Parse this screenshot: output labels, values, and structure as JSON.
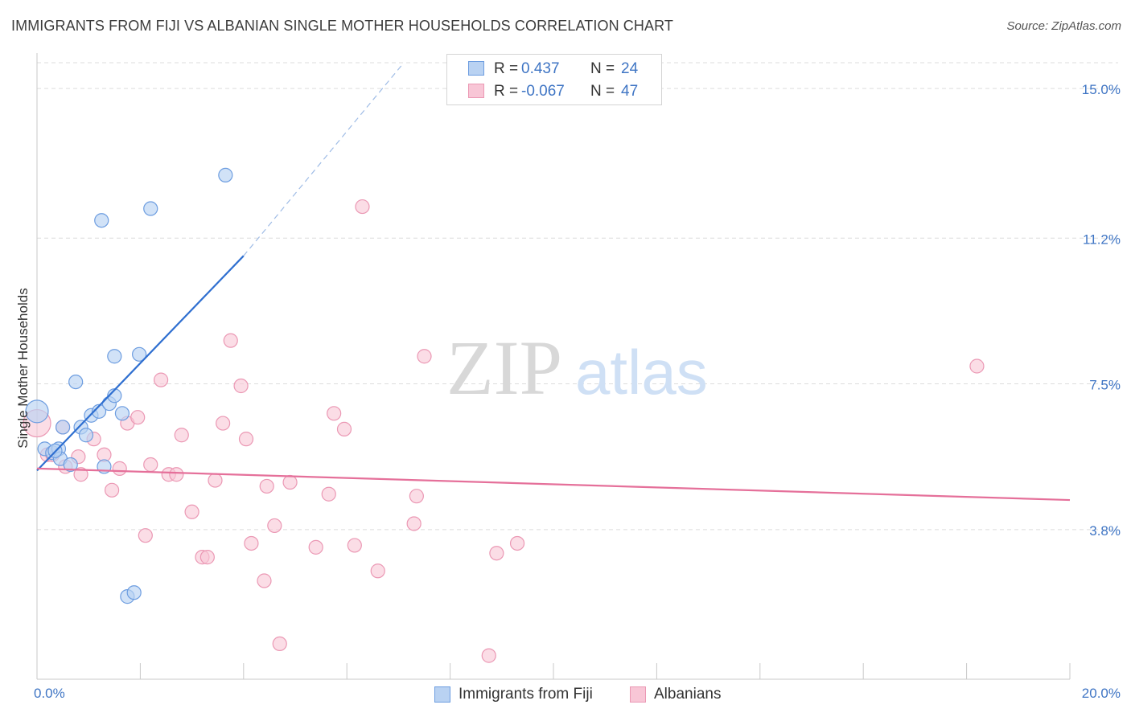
{
  "title": "IMMIGRANTS FROM FIJI VS ALBANIAN SINGLE MOTHER HOUSEHOLDS CORRELATION CHART",
  "source": "Source: ZipAtlas.com",
  "watermark": {
    "zip": "ZIP",
    "atlas": "atlas"
  },
  "colors": {
    "fiji_fill": "#b9d2f2",
    "fiji_stroke": "#6d9de0",
    "fiji_line": "#2f6fd0",
    "alb_fill": "#f8c6d6",
    "alb_stroke": "#eb98b4",
    "alb_line": "#e5709a",
    "accent": "#3f75c4",
    "grid": "#dcdcdc"
  },
  "legend": {
    "rows": [
      {
        "r_label": "R =",
        "r_value": " 0.437",
        "n_label": "N =",
        "n_value": "24"
      },
      {
        "r_label": "R =",
        "r_value": "-0.067",
        "n_label": "N =",
        "n_value": "47"
      }
    ]
  },
  "bottom_legend": {
    "fiji": "Immigrants from Fiji",
    "alb": "Albanians"
  },
  "chart_data": {
    "type": "scatter",
    "title": "IMMIGRANTS FROM FIJI VS ALBANIAN SINGLE MOTHER HOUSEHOLDS CORRELATION CHART",
    "xlabel": "",
    "ylabel": "Single Mother Households",
    "xlim": [
      0,
      20
    ],
    "ylim": [
      0,
      15.9
    ],
    "x_ticks": [
      {
        "value": 0,
        "label": "0.0%"
      },
      {
        "value": 20,
        "label": "20.0%"
      }
    ],
    "x_minor_ticks": [
      2,
      4,
      6,
      8,
      10,
      12,
      14,
      16,
      18,
      20
    ],
    "y_ticks": [
      {
        "value": 3.8,
        "label": "3.8%"
      },
      {
        "value": 7.5,
        "label": "7.5%"
      },
      {
        "value": 11.2,
        "label": "11.2%"
      },
      {
        "value": 15.0,
        "label": "15.0%"
      }
    ],
    "grid": true,
    "legend_position": "top-center",
    "series": [
      {
        "name": "Immigrants from Fiji",
        "points": [
          [
            0.0,
            6.8
          ],
          [
            0.15,
            5.85
          ],
          [
            0.3,
            5.75
          ],
          [
            0.42,
            5.85
          ],
          [
            0.5,
            6.4
          ],
          [
            0.45,
            5.6
          ],
          [
            0.75,
            7.55
          ],
          [
            0.65,
            5.45
          ],
          [
            0.85,
            6.4
          ],
          [
            0.95,
            6.2
          ],
          [
            1.05,
            6.7
          ],
          [
            1.2,
            6.8
          ],
          [
            1.3,
            5.4
          ],
          [
            1.4,
            7.0
          ],
          [
            1.5,
            7.2
          ],
          [
            1.65,
            6.75
          ],
          [
            1.5,
            8.2
          ],
          [
            1.98,
            8.25
          ],
          [
            1.25,
            11.65
          ],
          [
            2.2,
            11.95
          ],
          [
            3.65,
            12.8
          ],
          [
            1.75,
            2.1
          ],
          [
            1.88,
            2.2
          ],
          [
            0.35,
            5.8
          ]
        ],
        "trend": {
          "x0": 0.0,
          "y0": 5.3,
          "x1": 4.0,
          "y1": 10.75,
          "dash_to_x": 7.1,
          "dash_to_y": 15.65
        }
      },
      {
        "name": "Albanians",
        "points": [
          [
            0.0,
            6.5
          ],
          [
            0.2,
            5.7
          ],
          [
            0.3,
            5.7
          ],
          [
            0.5,
            6.4
          ],
          [
            0.55,
            5.4
          ],
          [
            0.85,
            5.2
          ],
          [
            0.8,
            5.65
          ],
          [
            1.1,
            6.1
          ],
          [
            1.3,
            5.7
          ],
          [
            1.45,
            4.8
          ],
          [
            1.6,
            5.35
          ],
          [
            1.75,
            6.5
          ],
          [
            1.95,
            6.65
          ],
          [
            2.1,
            3.65
          ],
          [
            2.2,
            5.45
          ],
          [
            2.4,
            7.6
          ],
          [
            2.55,
            5.2
          ],
          [
            2.7,
            5.2
          ],
          [
            2.8,
            6.2
          ],
          [
            3.0,
            4.25
          ],
          [
            3.2,
            3.1
          ],
          [
            3.3,
            3.1
          ],
          [
            3.45,
            5.05
          ],
          [
            3.6,
            6.5
          ],
          [
            3.75,
            8.6
          ],
          [
            3.95,
            7.45
          ],
          [
            4.05,
            6.1
          ],
          [
            4.15,
            3.45
          ],
          [
            4.4,
            2.5
          ],
          [
            4.45,
            4.9
          ],
          [
            4.6,
            3.9
          ],
          [
            4.7,
            0.9
          ],
          [
            4.9,
            5.0
          ],
          [
            5.4,
            3.35
          ],
          [
            5.65,
            4.7
          ],
          [
            5.75,
            6.75
          ],
          [
            5.95,
            6.35
          ],
          [
            6.15,
            3.4
          ],
          [
            6.3,
            12.0
          ],
          [
            6.6,
            2.75
          ],
          [
            7.3,
            3.95
          ],
          [
            7.35,
            4.65
          ],
          [
            7.5,
            8.2
          ],
          [
            8.75,
            0.6
          ],
          [
            8.9,
            3.2
          ],
          [
            9.3,
            3.45
          ],
          [
            18.2,
            7.95
          ]
        ],
        "trend": {
          "x0": 0.0,
          "y0": 5.35,
          "x1": 20.0,
          "y1": 4.55
        }
      }
    ]
  }
}
